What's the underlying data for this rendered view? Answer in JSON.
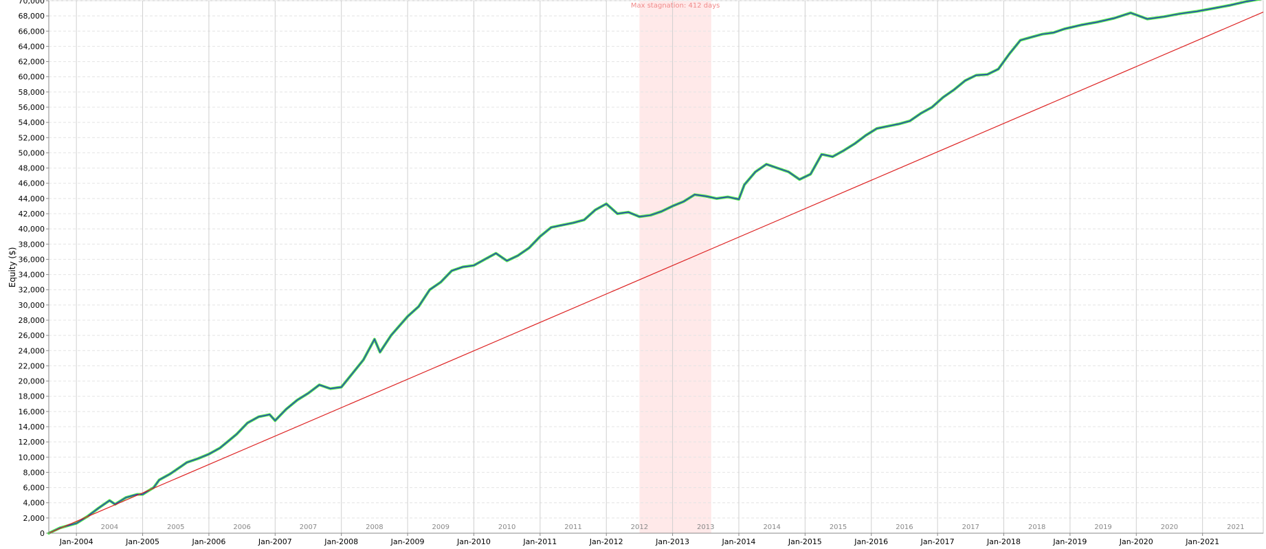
{
  "chart_data": {
    "type": "line",
    "title": "",
    "xlabel": "",
    "ylabel": "Equity ($)",
    "ylim": [
      0,
      70000
    ],
    "xlim": [
      "2003-08",
      "2021-12"
    ],
    "y_ticks": [
      0,
      2000,
      4000,
      6000,
      8000,
      10000,
      12000,
      14000,
      16000,
      18000,
      20000,
      22000,
      24000,
      26000,
      28000,
      30000,
      32000,
      34000,
      36000,
      38000,
      40000,
      42000,
      44000,
      46000,
      48000,
      50000,
      52000,
      54000,
      56000,
      58000,
      60000,
      62000,
      64000,
      66000,
      68000,
      70000
    ],
    "y_tick_labels": [
      "0",
      "2,000",
      "4,000",
      "6,000",
      "8,000",
      "10,000",
      "12,000",
      "14,000",
      "16,000",
      "18,000",
      "20,000",
      "22,000",
      "24,000",
      "26,000",
      "28,000",
      "30,000",
      "32,000",
      "34,000",
      "36,000",
      "38,000",
      "40,000",
      "42,000",
      "44,000",
      "46,000",
      "48,000",
      "50,000",
      "52,000",
      "54,000",
      "56,000",
      "58,000",
      "60,000",
      "62,000",
      "64,000",
      "66,000",
      "68,000",
      "70,000"
    ],
    "x_ticks": [
      {
        "date": "2004-01",
        "label": "Jan-2004"
      },
      {
        "date": "2005-01",
        "label": "Jan-2005"
      },
      {
        "date": "2006-01",
        "label": "Jan-2006"
      },
      {
        "date": "2007-01",
        "label": "Jan-2007"
      },
      {
        "date": "2008-01",
        "label": "Jan-2008"
      },
      {
        "date": "2009-01",
        "label": "Jan-2009"
      },
      {
        "date": "2010-01",
        "label": "Jan-2010"
      },
      {
        "date": "2011-01",
        "label": "Jan-2011"
      },
      {
        "date": "2012-01",
        "label": "Jan-2012"
      },
      {
        "date": "2013-01",
        "label": "Jan-2013"
      },
      {
        "date": "2014-01",
        "label": "Jan-2014"
      },
      {
        "date": "2015-01",
        "label": "Jan-2015"
      },
      {
        "date": "2016-01",
        "label": "Jan-2016"
      },
      {
        "date": "2017-01",
        "label": "Jan-2017"
      },
      {
        "date": "2018-01",
        "label": "Jan-2018"
      },
      {
        "date": "2019-01",
        "label": "Jan-2019"
      },
      {
        "date": "2020-01",
        "label": "Jan-2020"
      },
      {
        "date": "2021-01",
        "label": "Jan-2021"
      }
    ],
    "year_labels": [
      {
        "date": "2004-07",
        "label": "2004"
      },
      {
        "date": "2005-07",
        "label": "2005"
      },
      {
        "date": "2006-07",
        "label": "2006"
      },
      {
        "date": "2007-07",
        "label": "2007"
      },
      {
        "date": "2008-07",
        "label": "2008"
      },
      {
        "date": "2009-07",
        "label": "2009"
      },
      {
        "date": "2010-07",
        "label": "2010"
      },
      {
        "date": "2011-07",
        "label": "2011"
      },
      {
        "date": "2012-07",
        "label": "2012"
      },
      {
        "date": "2013-07",
        "label": "2013"
      },
      {
        "date": "2014-07",
        "label": "2014"
      },
      {
        "date": "2015-07",
        "label": "2015"
      },
      {
        "date": "2016-07",
        "label": "2016"
      },
      {
        "date": "2017-07",
        "label": "2017"
      },
      {
        "date": "2018-07",
        "label": "2018"
      },
      {
        "date": "2019-07",
        "label": "2019"
      },
      {
        "date": "2020-07",
        "label": "2020"
      },
      {
        "date": "2021-07",
        "label": "2021"
      }
    ],
    "grid": true,
    "stagnation": {
      "label": "Max stagnation: 412 days",
      "start": "2012-07",
      "end": "2013-08"
    },
    "series": [
      {
        "name": "",
        "color": "#2222cc",
        "points": [
          [
            "2003-08",
            0
          ],
          [
            "2003-10",
            700
          ],
          [
            "2003-12",
            1100
          ],
          [
            "2004-01",
            1300
          ],
          [
            "2004-03",
            2200
          ],
          [
            "2004-05",
            3300
          ],
          [
            "2004-07",
            4300
          ],
          [
            "2004-08",
            3800
          ],
          [
            "2004-10",
            4700
          ],
          [
            "2004-12",
            5100
          ],
          [
            "2005-01",
            5100
          ],
          [
            "2005-03",
            6000
          ],
          [
            "2005-04",
            7000
          ],
          [
            "2005-06",
            7800
          ],
          [
            "2005-08",
            8800
          ],
          [
            "2005-09",
            9300
          ],
          [
            "2005-11",
            9800
          ],
          [
            "2006-01",
            10400
          ],
          [
            "2006-03",
            11200
          ],
          [
            "2006-04",
            11800
          ],
          [
            "2006-06",
            13000
          ],
          [
            "2006-08",
            14500
          ],
          [
            "2006-10",
            15300
          ],
          [
            "2006-12",
            15600
          ],
          [
            "2007-01",
            14800
          ],
          [
            "2007-03",
            16300
          ],
          [
            "2007-05",
            17500
          ],
          [
            "2007-07",
            18400
          ],
          [
            "2007-09",
            19500
          ],
          [
            "2007-11",
            19000
          ],
          [
            "2008-01",
            19200
          ],
          [
            "2008-03",
            21000
          ],
          [
            "2008-05",
            22800
          ],
          [
            "2008-07",
            25500
          ],
          [
            "2008-08",
            23800
          ],
          [
            "2008-10",
            26000
          ],
          [
            "2009-01",
            28500
          ],
          [
            "2009-03",
            29800
          ],
          [
            "2009-05",
            32000
          ],
          [
            "2009-07",
            33000
          ],
          [
            "2009-09",
            34500
          ],
          [
            "2009-11",
            35000
          ],
          [
            "2010-01",
            35200
          ],
          [
            "2010-03",
            36000
          ],
          [
            "2010-05",
            36800
          ],
          [
            "2010-07",
            35800
          ],
          [
            "2010-09",
            36500
          ],
          [
            "2010-11",
            37500
          ],
          [
            "2011-01",
            39000
          ],
          [
            "2011-03",
            40200
          ],
          [
            "2011-05",
            40500
          ],
          [
            "2011-07",
            40800
          ],
          [
            "2011-09",
            41200
          ],
          [
            "2011-11",
            42500
          ],
          [
            "2012-01",
            43300
          ],
          [
            "2012-03",
            42000
          ],
          [
            "2012-05",
            42200
          ],
          [
            "2012-07",
            41600
          ],
          [
            "2012-09",
            41800
          ],
          [
            "2012-11",
            42300
          ],
          [
            "2013-01",
            43000
          ],
          [
            "2013-03",
            43600
          ],
          [
            "2013-05",
            44500
          ],
          [
            "2013-07",
            44300
          ],
          [
            "2013-09",
            44000
          ],
          [
            "2013-11",
            44200
          ],
          [
            "2014-01",
            43900
          ],
          [
            "2014-02",
            45800
          ],
          [
            "2014-04",
            47500
          ],
          [
            "2014-06",
            48500
          ],
          [
            "2014-08",
            48000
          ],
          [
            "2014-10",
            47500
          ],
          [
            "2014-12",
            46500
          ],
          [
            "2015-02",
            47200
          ],
          [
            "2015-04",
            49800
          ],
          [
            "2015-06",
            49500
          ],
          [
            "2015-08",
            50300
          ],
          [
            "2015-10",
            51200
          ],
          [
            "2015-12",
            52300
          ],
          [
            "2016-02",
            53200
          ],
          [
            "2016-04",
            53500
          ],
          [
            "2016-06",
            53800
          ],
          [
            "2016-08",
            54200
          ],
          [
            "2016-10",
            55200
          ],
          [
            "2016-12",
            56000
          ],
          [
            "2017-02",
            57300
          ],
          [
            "2017-04",
            58300
          ],
          [
            "2017-06",
            59500
          ],
          [
            "2017-08",
            60200
          ],
          [
            "2017-10",
            60300
          ],
          [
            "2017-12",
            61000
          ],
          [
            "2018-02",
            63000
          ],
          [
            "2018-04",
            64800
          ],
          [
            "2018-06",
            65200
          ],
          [
            "2018-08",
            65600
          ],
          [
            "2018-10",
            65800
          ],
          [
            "2018-12",
            66300
          ],
          [
            "2019-03",
            66800
          ],
          [
            "2019-06",
            67200
          ],
          [
            "2019-09",
            67700
          ],
          [
            "2019-12",
            68400
          ],
          [
            "2020-03",
            67600
          ],
          [
            "2020-06",
            67900
          ],
          [
            "2020-09",
            68300
          ],
          [
            "2020-12",
            68600
          ],
          [
            "2021-03",
            69000
          ],
          [
            "2021-06",
            69400
          ],
          [
            "2021-09",
            69900
          ],
          [
            "2021-12",
            70300
          ]
        ]
      },
      {
        "name": "",
        "color": "#dd2222",
        "points": [
          [
            "2003-08",
            0
          ],
          [
            "2021-12",
            68500
          ]
        ]
      }
    ]
  }
}
